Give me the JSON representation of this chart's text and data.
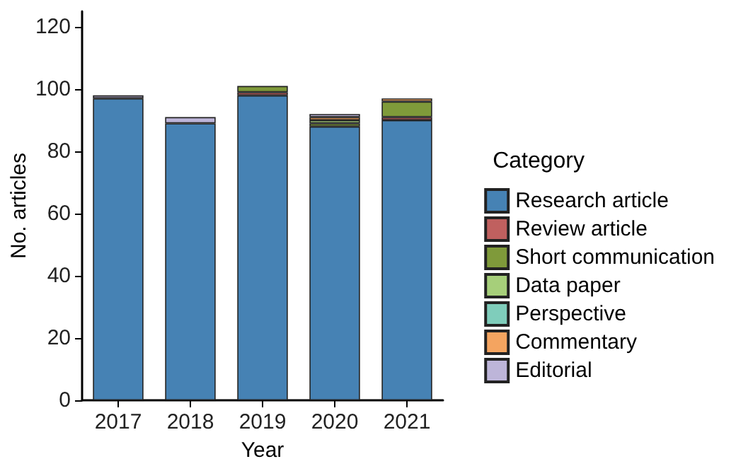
{
  "chart_data": {
    "type": "bar",
    "stacked": true,
    "xlabel": "Year",
    "ylabel": "No. articles",
    "legend_title": "Category",
    "legend": "right",
    "grid": false,
    "categories": [
      "2017",
      "2018",
      "2019",
      "2020",
      "2021"
    ],
    "ylim": [
      0,
      125
    ],
    "yticks": [
      0,
      20,
      40,
      60,
      80,
      100,
      120
    ],
    "series": [
      {
        "name": "Research article",
        "color": "#4682b4",
        "values": [
          97,
          89,
          98,
          88,
          90
        ]
      },
      {
        "name": "Review article",
        "color": "#c0605f",
        "values": [
          0,
          0,
          1,
          0,
          1
        ]
      },
      {
        "name": "Short communication",
        "color": "#7f9a3a",
        "values": [
          0,
          0,
          2,
          1,
          5
        ]
      },
      {
        "name": "Data paper",
        "color": "#a6cf7a",
        "values": [
          0,
          0,
          0,
          1,
          0
        ]
      },
      {
        "name": "Perspective",
        "color": "#7fcdbb",
        "values": [
          0,
          0,
          0,
          0,
          0
        ]
      },
      {
        "name": "Commentary",
        "color": "#f4a460",
        "values": [
          0,
          0,
          0,
          1,
          1
        ]
      },
      {
        "name": "Editorial",
        "color": "#bdb5d9",
        "values": [
          1,
          2,
          0,
          1,
          0
        ]
      }
    ]
  }
}
